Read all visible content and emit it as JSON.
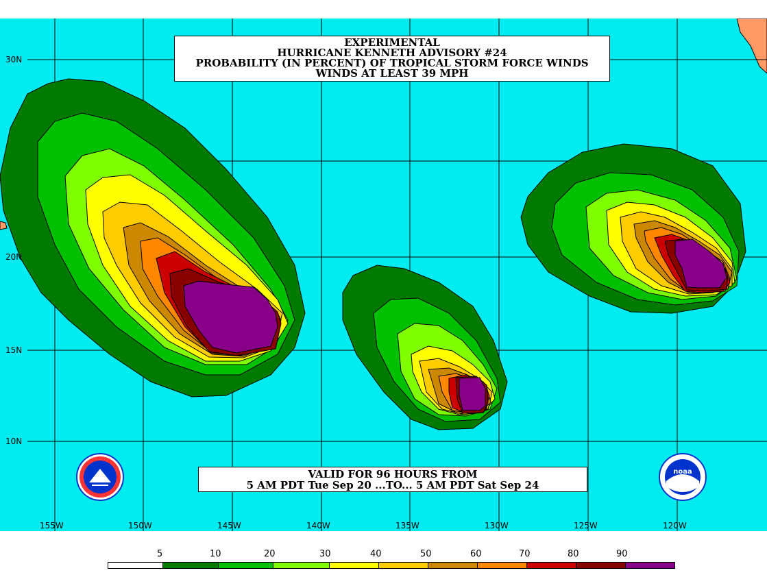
{
  "title": {
    "line1": "EXPERIMENTAL",
    "line2": "HURRICANE KENNETH ADVISORY #24",
    "line3": "PROBABILITY (IN PERCENT) OF TROPICAL STORM FORCE WINDS",
    "line4": "WINDS AT LEAST 39 MPH"
  },
  "valid": {
    "line1": "VALID FOR 96 HOURS FROM",
    "line2": "5 AM PDT Tue Sep 20 ...TO... 5 AM PDT Sat Sep 24"
  },
  "latitudes": [
    "30N",
    "20N",
    "15N",
    "10N"
  ],
  "longitudes": [
    "155W",
    "150W",
    "145W",
    "140W",
    "135W",
    "130W",
    "125W",
    "120W"
  ],
  "legend": {
    "labels": [
      "5",
      "10",
      "20",
      "30",
      "40",
      "50",
      "60",
      "70",
      "80",
      "90"
    ],
    "colors": [
      "#ffffff",
      "#007a00",
      "#00c000",
      "#80ff00",
      "#ffff00",
      "#ffcc00",
      "#cc8800",
      "#ff8800",
      "#cc0000",
      "#880000",
      "#880088"
    ]
  },
  "colors": {
    "ocean": "#00ecf0",
    "land": "#ff9966"
  },
  "logos": {
    "left": "nws-logo",
    "right": "noaa-logo"
  }
}
